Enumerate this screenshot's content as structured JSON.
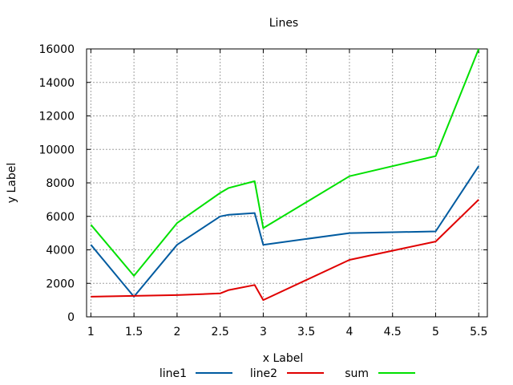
{
  "chart_data": {
    "type": "line",
    "title": "Lines",
    "xlabel": "x Label",
    "ylabel": "y Label",
    "xlim": [
      0.95,
      5.6
    ],
    "ylim": [
      0,
      16000
    ],
    "grid": true,
    "legend_position": "bottom",
    "x_ticks": [
      1,
      1.5,
      2,
      2.5,
      3,
      3.5,
      4,
      4.5,
      5,
      5.5
    ],
    "x_tick_labels": [
      "1",
      "1.5",
      "2",
      "2.5",
      "3",
      "3.5",
      "4",
      "4.5",
      "5",
      "5.5"
    ],
    "y_ticks": [
      0,
      2000,
      4000,
      6000,
      8000,
      10000,
      12000,
      14000,
      16000
    ],
    "y_tick_labels": [
      "0",
      "2000",
      "4000",
      "6000",
      "8000",
      "10000",
      "12000",
      "14000",
      "16000"
    ],
    "series": [
      {
        "name": "line1",
        "color": "#005ba0",
        "x": [
          1,
          1.5,
          2,
          2.5,
          2.6,
          2.9,
          3,
          4,
          5,
          5.5
        ],
        "y": [
          4300,
          1200,
          4300,
          6000,
          6100,
          6200,
          4300,
          5000,
          5100,
          9000
        ]
      },
      {
        "name": "line2",
        "color": "#e00000",
        "x": [
          1,
          1.5,
          2,
          2.5,
          2.6,
          2.9,
          3,
          4,
          5,
          5.5
        ],
        "y": [
          1200,
          1250,
          1300,
          1400,
          1600,
          1900,
          1000,
          3400,
          4500,
          7000
        ]
      },
      {
        "name": "sum",
        "color": "#00e000",
        "x": [
          1,
          1.5,
          2,
          2.5,
          2.6,
          2.9,
          3,
          4,
          5,
          5.5
        ],
        "y": [
          5500,
          2450,
          5600,
          7400,
          7700,
          8100,
          5300,
          8400,
          9600,
          16000
        ]
      }
    ]
  }
}
